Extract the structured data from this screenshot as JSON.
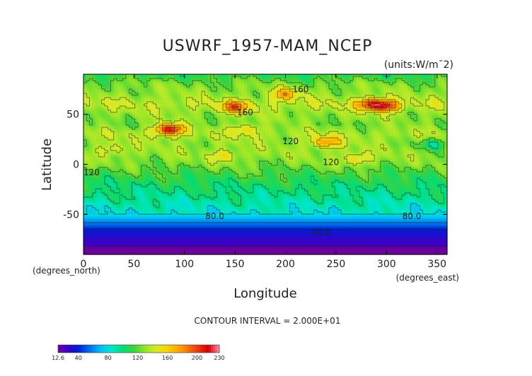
{
  "chart_data": {
    "type": "heatmap",
    "title": "USWRF_1957-MAM_NCEP",
    "units_label": "(units:W/m¯2)",
    "xlabel": "Longitude",
    "ylabel": "Latitude",
    "x_unit_label": "(degrees_east)",
    "y_unit_label": "(degrees_north)",
    "xlim": [
      0,
      360
    ],
    "ylim": [
      -90,
      90
    ],
    "x_ticks": [
      0,
      50,
      100,
      150,
      200,
      250,
      300,
      350
    ],
    "y_ticks": [
      -50,
      0,
      50
    ],
    "contour_interval_text": "CONTOUR INTERVAL = 2.000E+01",
    "contour_labels": [
      "160",
      "160",
      "120",
      "120",
      "120",
      "80.0",
      "80.0",
      "40.0"
    ],
    "colorbar": {
      "min": 12.6,
      "max": 230,
      "tick_labels": [
        "12.6",
        "40",
        "80",
        "120",
        "160",
        "200",
        "230"
      ],
      "tick_values": [
        12.6,
        40,
        80,
        120,
        160,
        200,
        230
      ]
    },
    "latitude_profile": [
      {
        "lat": 90,
        "value": 110
      },
      {
        "lat": 80,
        "value": 125
      },
      {
        "lat": 70,
        "value": 130
      },
      {
        "lat": 60,
        "value": 140
      },
      {
        "lat": 50,
        "value": 130
      },
      {
        "lat": 40,
        "value": 125
      },
      {
        "lat": 30,
        "value": 135
      },
      {
        "lat": 20,
        "value": 130
      },
      {
        "lat": 10,
        "value": 130
      },
      {
        "lat": 0,
        "value": 125
      },
      {
        "lat": -10,
        "value": 115
      },
      {
        "lat": -20,
        "value": 105
      },
      {
        "lat": -30,
        "value": 98
      },
      {
        "lat": -40,
        "value": 90
      },
      {
        "lat": -50,
        "value": 82
      },
      {
        "lat": -55,
        "value": 65
      },
      {
        "lat": -60,
        "value": 55
      },
      {
        "lat": -65,
        "value": 40
      },
      {
        "lat": -70,
        "value": 33
      },
      {
        "lat": -75,
        "value": 28
      },
      {
        "lat": -80,
        "value": 24
      },
      {
        "lat": -85,
        "value": 13
      },
      {
        "lat": -90,
        "value": 13
      }
    ],
    "hotspots": [
      {
        "lon": 85,
        "lat": 35,
        "value": 215
      },
      {
        "lon": 150,
        "lat": 57,
        "value": 190
      },
      {
        "lon": 285,
        "lat": 60,
        "value": 205
      },
      {
        "lon": 300,
        "lat": 58,
        "value": 195
      },
      {
        "lon": 200,
        "lat": 70,
        "value": 172
      },
      {
        "lon": 240,
        "lat": 22,
        "value": 178
      },
      {
        "lon": 160,
        "lat": 35,
        "value": 160
      },
      {
        "lon": 270,
        "lat": 5,
        "value": 160
      },
      {
        "lon": 140,
        "lat": 8,
        "value": 155
      },
      {
        "lon": 30,
        "lat": 15,
        "value": 150
      },
      {
        "lon": 345,
        "lat": 20,
        "value": 100
      }
    ]
  }
}
